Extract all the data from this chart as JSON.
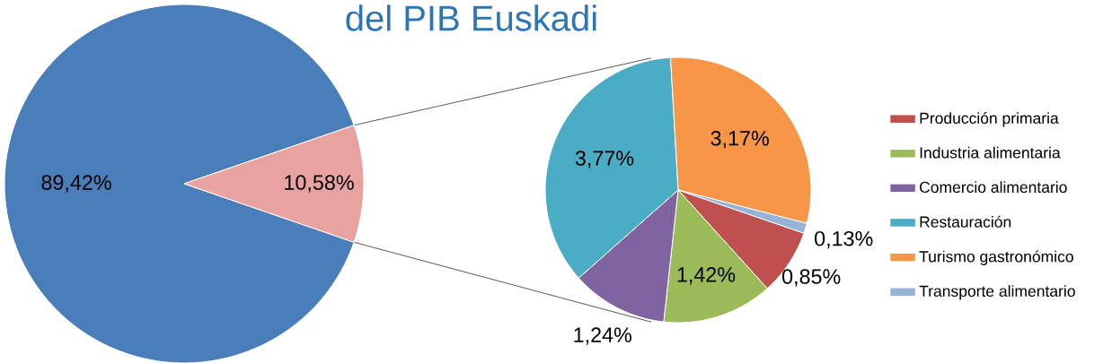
{
  "chart_data": [
    {
      "type": "pie",
      "title": "del PIB Euskadi",
      "categories": [
        null,
        null
      ],
      "values": [
        89.42,
        10.58
      ],
      "colors": [
        "#4a7ebb",
        "#e8a3a1"
      ],
      "value_labels": [
        "89,42%",
        "10,58%"
      ]
    },
    {
      "type": "pie",
      "categories": [
        "Producción primaria",
        "Industria alimentaria",
        "Comercio alimentario",
        "Restauración",
        "Turismo gastronómico",
        "Transporte alimentario"
      ],
      "values": [
        0.85,
        1.42,
        1.24,
        3.77,
        3.17,
        0.13
      ],
      "colors": [
        "#c0504d",
        "#9bbb59",
        "#8064a2",
        "#4bacc6",
        "#f79646",
        "#95b3d7"
      ],
      "value_labels": [
        "0,85%",
        "1,42%",
        "1,24%",
        "3,77%",
        "3,17%",
        "0,13%"
      ],
      "legend": "right"
    }
  ]
}
